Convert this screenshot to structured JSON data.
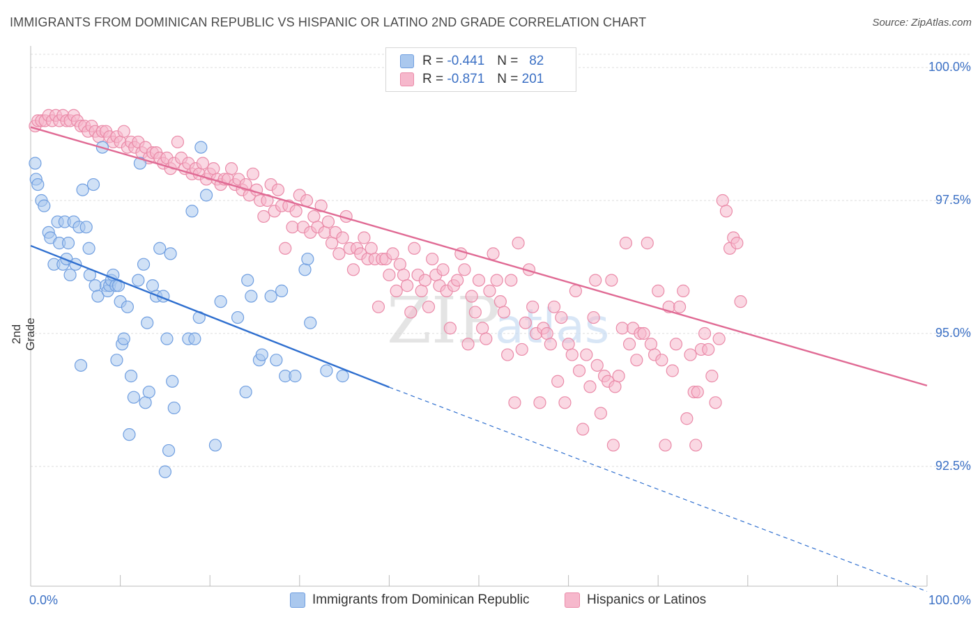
{
  "title": "IMMIGRANTS FROM DOMINICAN REPUBLIC VS HISPANIC OR LATINO 2ND GRADE CORRELATION CHART",
  "source": "Source: ZipAtlas.com",
  "watermark": "ZIPatlas",
  "colors": {
    "blue_fill": "#aac8ee",
    "blue_stroke": "#6f9ee0",
    "blue_line": "#2f6fcf",
    "pink_fill": "#f6b8cc",
    "pink_stroke": "#ea8aa8",
    "pink_line": "#e06a94",
    "accent_text": "#3a6fc4",
    "grid": "#dddddd"
  },
  "legend": {
    "rows": [
      {
        "r_label": "R =",
        "r_value": "-0.441",
        "n_label": "N =",
        "n_value": "82"
      },
      {
        "r_label": "R =",
        "r_value": "-0.871",
        "n_label": "N =",
        "n_value": "201"
      }
    ]
  },
  "chart_data": {
    "type": "scatter",
    "title": "IMMIGRANTS FROM DOMINICAN REPUBLIC VS HISPANIC OR LATINO 2ND GRADE CORRELATION CHART",
    "xlabel": "",
    "ylabel": "2nd Grade",
    "xlim": [
      0,
      100
    ],
    "ylim": [
      90.25,
      100.5
    ],
    "x_tick_labels": [
      "0.0%",
      "100.0%"
    ],
    "y_tick_labels": [
      "100.0%",
      "97.5%",
      "95.0%",
      "92.5%"
    ],
    "y_ticks": [
      100.0,
      97.5,
      95.0,
      92.5
    ],
    "grid": true,
    "legend_position": "bottom",
    "series": [
      {
        "name": "Immigrants from Dominican Republic",
        "color": "#aac8ee",
        "r": -0.441,
        "n": 82,
        "trend": {
          "x": [
            0,
            40
          ],
          "y": [
            96.65,
            93.99
          ]
        },
        "trend_extension": {
          "x": [
            40,
            100
          ],
          "y": [
            93.99,
            90.15
          ]
        },
        "points": [
          [
            0.5,
            98.2
          ],
          [
            0.6,
            97.9
          ],
          [
            0.8,
            97.8
          ],
          [
            1.2,
            97.5
          ],
          [
            1.5,
            97.4
          ],
          [
            2.0,
            96.9
          ],
          [
            2.2,
            96.8
          ],
          [
            3.0,
            97.1
          ],
          [
            3.2,
            96.7
          ],
          [
            2.6,
            96.3
          ],
          [
            3.6,
            96.3
          ],
          [
            3.8,
            97.1
          ],
          [
            4.0,
            96.4
          ],
          [
            4.2,
            96.7
          ],
          [
            4.4,
            96.1
          ],
          [
            5.0,
            96.3
          ],
          [
            4.8,
            97.1
          ],
          [
            5.4,
            97.0
          ],
          [
            5.8,
            97.7
          ],
          [
            6.2,
            97.0
          ],
          [
            6.5,
            96.6
          ],
          [
            6.6,
            96.1
          ],
          [
            7.0,
            97.8
          ],
          [
            7.2,
            95.9
          ],
          [
            7.5,
            95.7
          ],
          [
            8.0,
            98.5
          ],
          [
            8.4,
            95.9
          ],
          [
            8.6,
            95.8
          ],
          [
            8.8,
            95.9
          ],
          [
            9.0,
            96.0
          ],
          [
            9.2,
            96.1
          ],
          [
            9.5,
            95.9
          ],
          [
            9.8,
            95.9
          ],
          [
            10.0,
            95.6
          ],
          [
            10.2,
            94.8
          ],
          [
            10.4,
            94.9
          ],
          [
            10.8,
            95.5
          ],
          [
            11.2,
            94.2
          ],
          [
            11.5,
            93.8
          ],
          [
            12.0,
            96.0
          ],
          [
            12.2,
            98.2
          ],
          [
            12.6,
            96.3
          ],
          [
            12.8,
            93.7
          ],
          [
            13.0,
            95.2
          ],
          [
            13.2,
            93.9
          ],
          [
            13.6,
            95.9
          ],
          [
            14.0,
            95.7
          ],
          [
            14.4,
            96.6
          ],
          [
            14.8,
            95.7
          ],
          [
            15.2,
            94.9
          ],
          [
            15.4,
            92.8
          ],
          [
            15.6,
            96.5
          ],
          [
            15.8,
            94.1
          ],
          [
            16.0,
            93.6
          ],
          [
            17.6,
            94.9
          ],
          [
            18.0,
            97.3
          ],
          [
            18.3,
            94.9
          ],
          [
            18.8,
            95.3
          ],
          [
            19.6,
            97.6
          ],
          [
            20.6,
            92.9
          ],
          [
            21.2,
            95.6
          ],
          [
            23.1,
            95.3
          ],
          [
            24.2,
            96.0
          ],
          [
            24.6,
            95.7
          ],
          [
            25.5,
            94.5
          ],
          [
            25.8,
            94.6
          ],
          [
            26.8,
            95.7
          ],
          [
            27.4,
            94.5
          ],
          [
            28.0,
            95.8
          ],
          [
            28.4,
            94.2
          ],
          [
            29.5,
            94.2
          ],
          [
            30.6,
            96.2
          ],
          [
            30.9,
            96.4
          ],
          [
            31.2,
            95.2
          ],
          [
            33.0,
            94.3
          ],
          [
            34.8,
            94.2
          ],
          [
            15.0,
            92.4
          ],
          [
            11.0,
            93.1
          ],
          [
            9.6,
            94.5
          ],
          [
            5.6,
            94.4
          ],
          [
            19.0,
            98.5
          ],
          [
            24.0,
            93.9
          ]
        ]
      },
      {
        "name": "Hispanics or Latinos",
        "color": "#f6b8cc",
        "r": -0.871,
        "n": 201,
        "trend": {
          "x": [
            0,
            100
          ],
          "y": [
            98.88,
            94.02
          ]
        },
        "points": [
          [
            0.5,
            98.9
          ],
          [
            0.8,
            99.0
          ],
          [
            1.2,
            99.0
          ],
          [
            1.6,
            99.0
          ],
          [
            2.0,
            99.1
          ],
          [
            2.4,
            99.0
          ],
          [
            2.8,
            99.1
          ],
          [
            3.2,
            99.0
          ],
          [
            3.6,
            99.1
          ],
          [
            4.0,
            99.0
          ],
          [
            4.4,
            99.0
          ],
          [
            4.8,
            99.1
          ],
          [
            5.2,
            99.0
          ],
          [
            5.6,
            98.9
          ],
          [
            6.0,
            98.9
          ],
          [
            6.4,
            98.8
          ],
          [
            6.8,
            98.9
          ],
          [
            7.2,
            98.8
          ],
          [
            7.6,
            98.7
          ],
          [
            8.0,
            98.8
          ],
          [
            8.4,
            98.8
          ],
          [
            8.8,
            98.7
          ],
          [
            9.2,
            98.6
          ],
          [
            9.6,
            98.7
          ],
          [
            10.0,
            98.6
          ],
          [
            10.4,
            98.8
          ],
          [
            10.8,
            98.5
          ],
          [
            11.2,
            98.6
          ],
          [
            11.6,
            98.5
          ],
          [
            12.0,
            98.6
          ],
          [
            12.4,
            98.4
          ],
          [
            12.8,
            98.5
          ],
          [
            13.2,
            98.3
          ],
          [
            13.6,
            98.4
          ],
          [
            14.0,
            98.4
          ],
          [
            14.4,
            98.3
          ],
          [
            14.8,
            98.2
          ],
          [
            15.2,
            98.3
          ],
          [
            15.6,
            98.1
          ],
          [
            16.0,
            98.2
          ],
          [
            16.4,
            98.6
          ],
          [
            16.8,
            98.3
          ],
          [
            17.2,
            98.1
          ],
          [
            17.6,
            98.2
          ],
          [
            18.0,
            98.0
          ],
          [
            18.4,
            98.1
          ],
          [
            18.8,
            98.0
          ],
          [
            19.2,
            98.2
          ],
          [
            19.6,
            97.9
          ],
          [
            20.0,
            98.0
          ],
          [
            20.4,
            98.1
          ],
          [
            20.8,
            97.9
          ],
          [
            21.2,
            97.8
          ],
          [
            21.6,
            97.9
          ],
          [
            22.0,
            97.9
          ],
          [
            22.4,
            98.1
          ],
          [
            22.8,
            97.8
          ],
          [
            23.2,
            97.9
          ],
          [
            23.6,
            97.7
          ],
          [
            24.0,
            97.8
          ],
          [
            24.4,
            97.6
          ],
          [
            24.8,
            98.0
          ],
          [
            25.2,
            97.7
          ],
          [
            25.6,
            97.5
          ],
          [
            26.0,
            97.2
          ],
          [
            26.4,
            97.5
          ],
          [
            26.8,
            97.8
          ],
          [
            27.2,
            97.3
          ],
          [
            27.6,
            97.7
          ],
          [
            28.0,
            97.4
          ],
          [
            28.4,
            96.6
          ],
          [
            28.8,
            97.4
          ],
          [
            29.2,
            97.0
          ],
          [
            29.6,
            97.3
          ],
          [
            30.0,
            97.6
          ],
          [
            30.4,
            97.0
          ],
          [
            30.8,
            97.5
          ],
          [
            31.2,
            96.9
          ],
          [
            31.6,
            97.2
          ],
          [
            32.0,
            97.0
          ],
          [
            32.4,
            97.4
          ],
          [
            32.8,
            96.9
          ],
          [
            33.2,
            97.1
          ],
          [
            33.6,
            96.7
          ],
          [
            34.0,
            96.9
          ],
          [
            34.4,
            96.5
          ],
          [
            34.8,
            96.8
          ],
          [
            35.2,
            97.2
          ],
          [
            35.6,
            96.6
          ],
          [
            36.0,
            96.2
          ],
          [
            36.4,
            96.6
          ],
          [
            36.8,
            96.5
          ],
          [
            37.2,
            96.8
          ],
          [
            37.6,
            96.4
          ],
          [
            38.0,
            96.6
          ],
          [
            38.4,
            96.4
          ],
          [
            38.8,
            95.5
          ],
          [
            39.2,
            96.4
          ],
          [
            39.6,
            96.4
          ],
          [
            40.0,
            96.1
          ],
          [
            40.4,
            96.5
          ],
          [
            40.8,
            95.8
          ],
          [
            41.2,
            96.3
          ],
          [
            41.6,
            96.1
          ],
          [
            42.0,
            95.9
          ],
          [
            42.4,
            95.4
          ],
          [
            42.8,
            96.6
          ],
          [
            43.2,
            96.1
          ],
          [
            43.6,
            95.8
          ],
          [
            44.0,
            96.0
          ],
          [
            44.4,
            95.5
          ],
          [
            44.8,
            96.4
          ],
          [
            45.2,
            96.1
          ],
          [
            45.6,
            95.9
          ],
          [
            46.0,
            96.2
          ],
          [
            46.4,
            95.8
          ],
          [
            46.8,
            95.1
          ],
          [
            47.2,
            95.9
          ],
          [
            47.6,
            96.0
          ],
          [
            48.0,
            96.5
          ],
          [
            48.4,
            96.2
          ],
          [
            48.8,
            94.8
          ],
          [
            49.2,
            95.7
          ],
          [
            49.6,
            95.4
          ],
          [
            50.0,
            96.0
          ],
          [
            50.4,
            95.1
          ],
          [
            50.8,
            94.9
          ],
          [
            51.2,
            95.8
          ],
          [
            51.6,
            96.5
          ],
          [
            52.0,
            96.0
          ],
          [
            52.4,
            95.6
          ],
          [
            52.8,
            95.4
          ],
          [
            53.2,
            94.6
          ],
          [
            53.6,
            96.0
          ],
          [
            54.0,
            93.7
          ],
          [
            54.4,
            96.7
          ],
          [
            54.8,
            94.7
          ],
          [
            55.2,
            95.2
          ],
          [
            55.6,
            96.2
          ],
          [
            56.0,
            95.5
          ],
          [
            56.4,
            95.0
          ],
          [
            56.8,
            93.7
          ],
          [
            57.2,
            95.1
          ],
          [
            57.6,
            95.0
          ],
          [
            58.0,
            94.8
          ],
          [
            58.4,
            95.5
          ],
          [
            58.8,
            94.1
          ],
          [
            59.2,
            95.3
          ],
          [
            59.6,
            93.7
          ],
          [
            60.0,
            94.8
          ],
          [
            60.4,
            94.6
          ],
          [
            60.8,
            95.8
          ],
          [
            61.2,
            94.3
          ],
          [
            61.6,
            93.2
          ],
          [
            62.0,
            94.6
          ],
          [
            62.4,
            94.0
          ],
          [
            62.8,
            95.3
          ],
          [
            63.2,
            94.4
          ],
          [
            63.6,
            93.5
          ],
          [
            64.0,
            94.2
          ],
          [
            64.4,
            94.1
          ],
          [
            64.8,
            96.0
          ],
          [
            65.2,
            94.0
          ],
          [
            65.6,
            94.2
          ],
          [
            66.0,
            95.1
          ],
          [
            66.4,
            96.7
          ],
          [
            66.8,
            94.8
          ],
          [
            67.2,
            95.1
          ],
          [
            67.6,
            94.5
          ],
          [
            68.0,
            95.0
          ],
          [
            68.4,
            95.0
          ],
          [
            68.8,
            96.7
          ],
          [
            69.2,
            94.8
          ],
          [
            69.6,
            94.6
          ],
          [
            70.0,
            95.8
          ],
          [
            70.4,
            94.5
          ],
          [
            70.8,
            92.9
          ],
          [
            71.2,
            95.5
          ],
          [
            71.6,
            94.3
          ],
          [
            72.0,
            94.8
          ],
          [
            72.4,
            95.5
          ],
          [
            72.8,
            95.8
          ],
          [
            73.2,
            93.4
          ],
          [
            73.6,
            94.6
          ],
          [
            74.0,
            93.9
          ],
          [
            74.4,
            93.9
          ],
          [
            74.8,
            94.7
          ],
          [
            75.2,
            95.0
          ],
          [
            75.6,
            94.7
          ],
          [
            76.0,
            94.2
          ],
          [
            76.4,
            93.7
          ],
          [
            76.8,
            94.9
          ],
          [
            77.2,
            97.5
          ],
          [
            77.6,
            97.3
          ],
          [
            78.0,
            96.6
          ],
          [
            78.4,
            96.8
          ],
          [
            78.8,
            96.7
          ],
          [
            79.2,
            95.6
          ],
          [
            74.2,
            92.9
          ],
          [
            65.0,
            92.9
          ],
          [
            63.0,
            96.0
          ]
        ]
      }
    ]
  }
}
